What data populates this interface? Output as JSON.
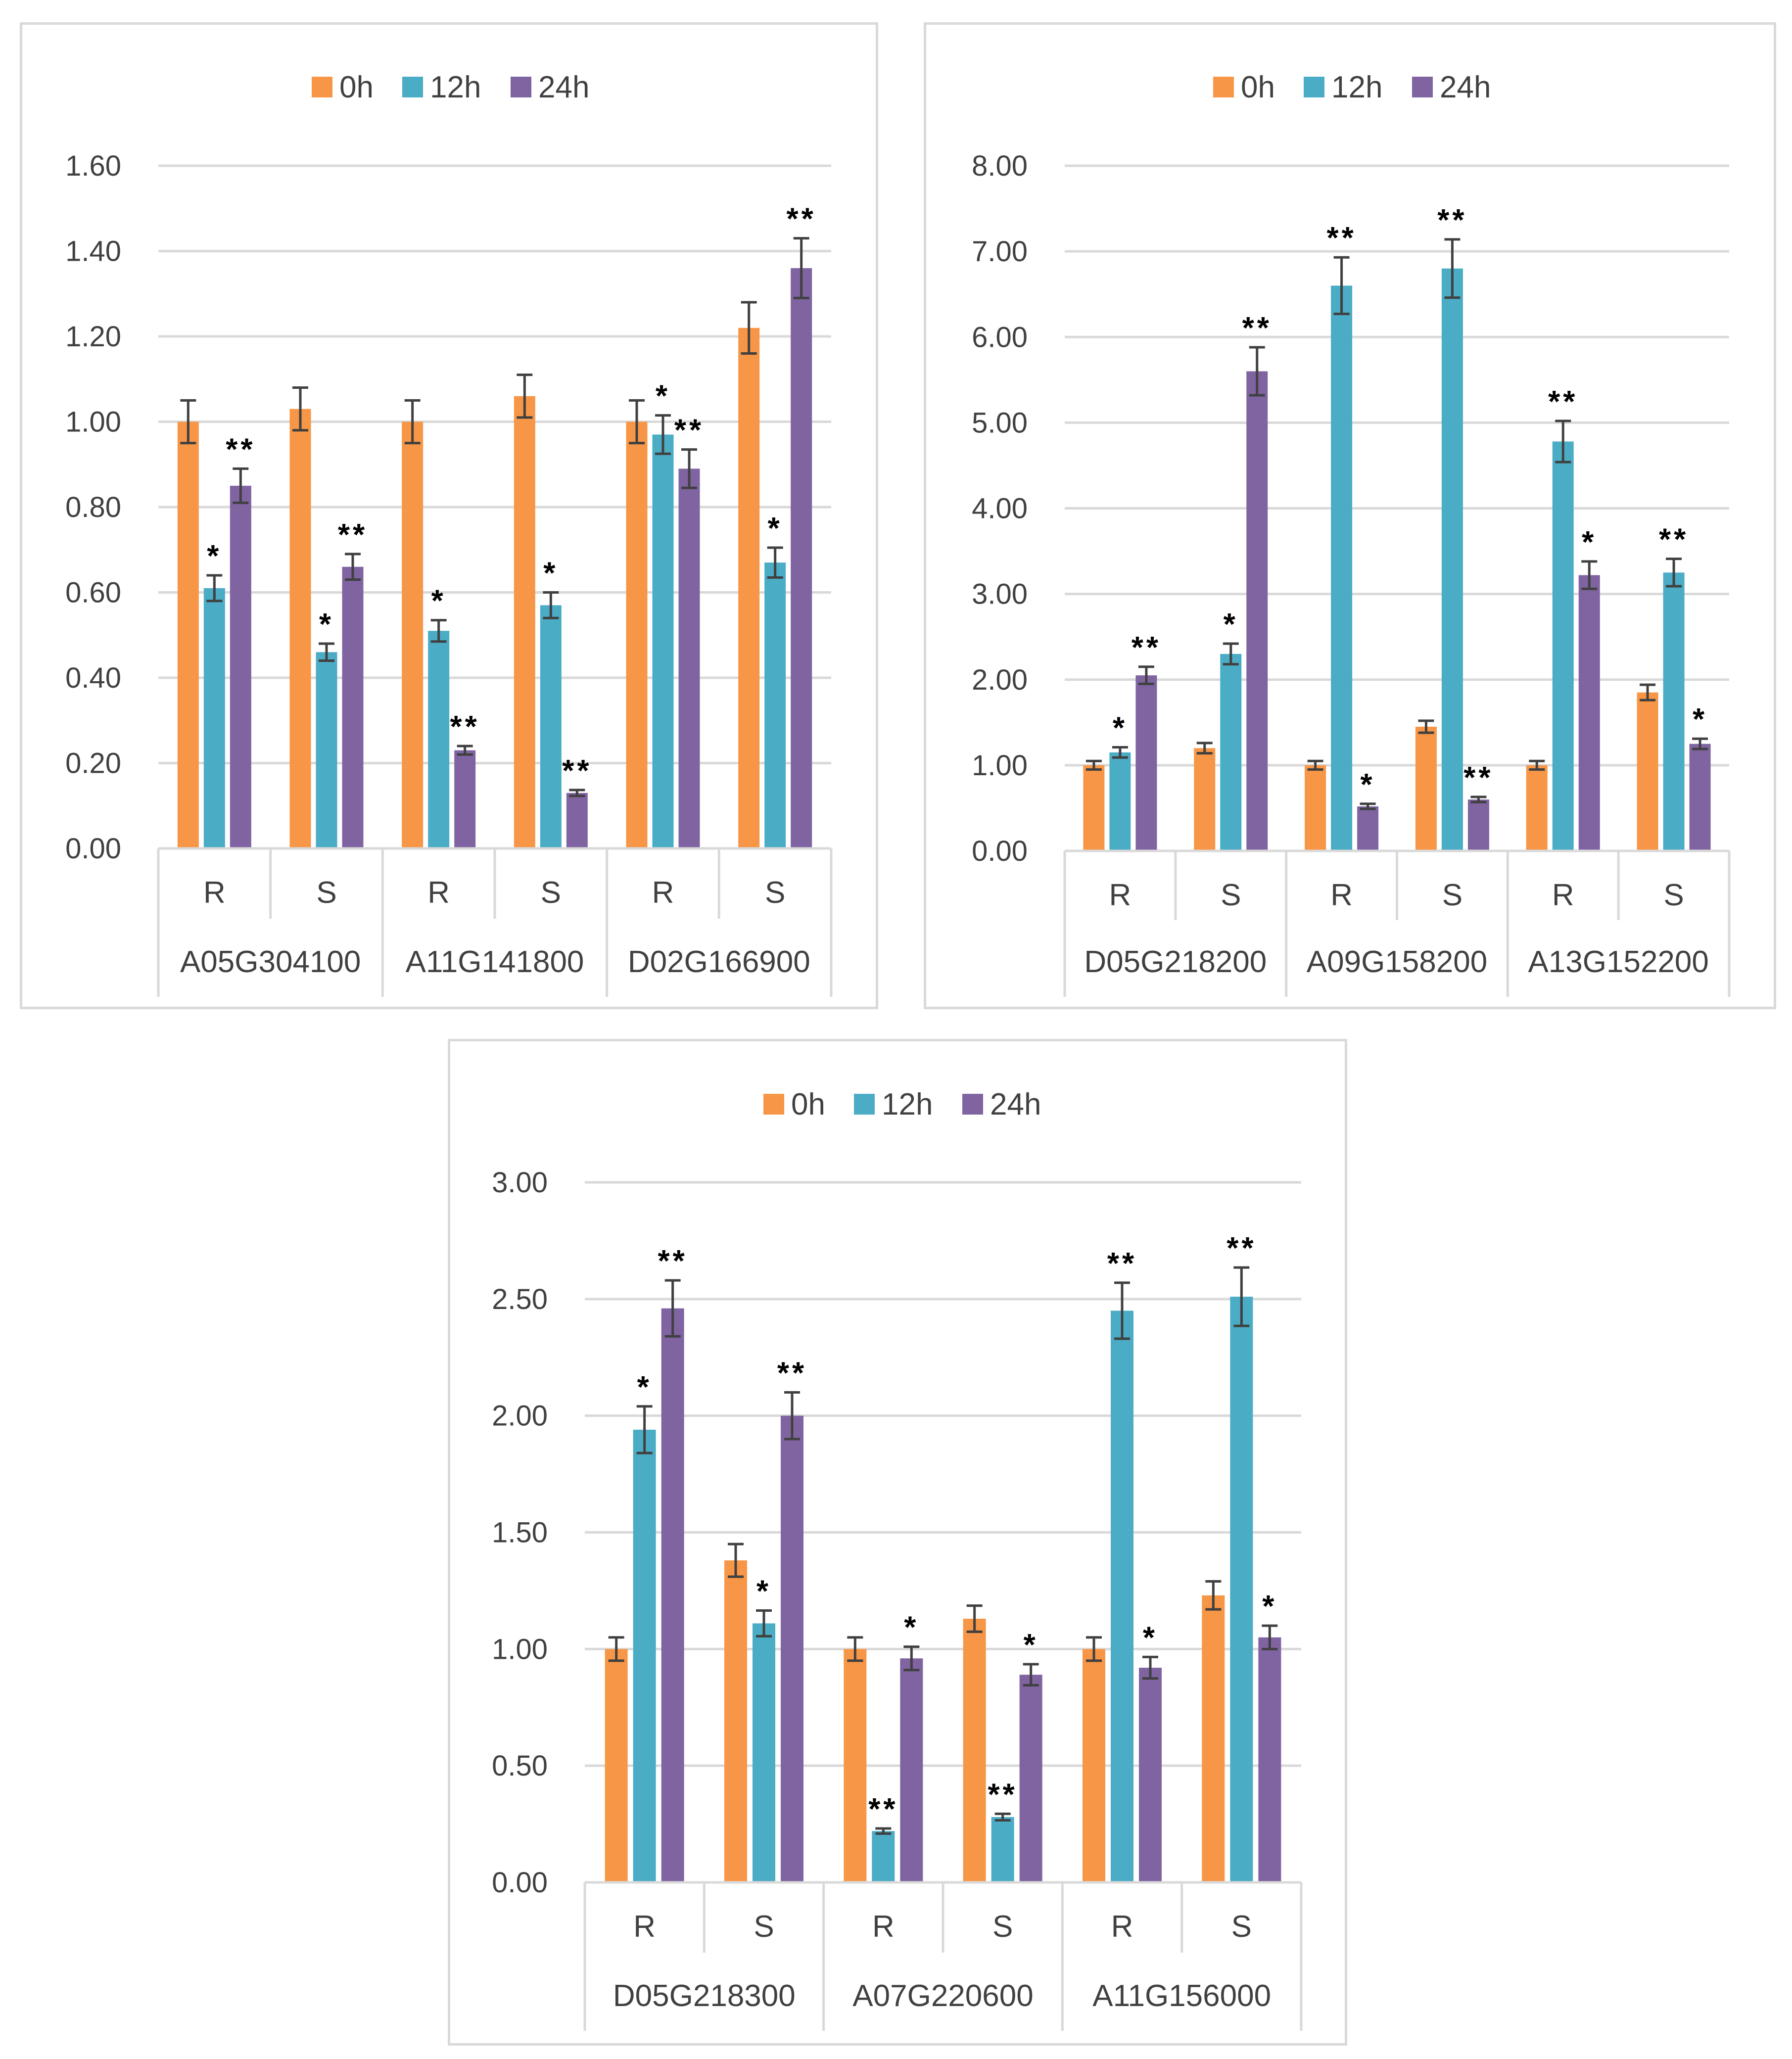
{
  "colors": {
    "0h": "#f79646",
    "12h": "#4bacc6",
    "24h": "#8064a2",
    "grid": "#d9d9d9",
    "error": "#404040",
    "text": "#404040",
    "star": "#000000"
  },
  "chart_data": [
    {
      "type": "bar",
      "title": "",
      "legend_position": "top-center",
      "series_names": [
        "0h",
        "12h",
        "24h"
      ],
      "y_ticks": [
        "0.00",
        "0.20",
        "0.40",
        "0.60",
        "0.80",
        "1.00",
        "1.20",
        "1.40",
        "1.60"
      ],
      "ylim": [
        0,
        1.6
      ],
      "genes": [
        "A05G304100",
        "A11G141800",
        "D02G166900"
      ],
      "groups": [
        {
          "label": "R",
          "gene": "A05G304100",
          "values": [
            1.0,
            0.61,
            0.85
          ],
          "errors": [
            0.05,
            0.03,
            0.04
          ],
          "sig": [
            "",
            "*",
            "**"
          ]
        },
        {
          "label": "S",
          "gene": "A05G304100",
          "values": [
            1.03,
            0.46,
            0.66
          ],
          "errors": [
            0.05,
            0.02,
            0.03
          ],
          "sig": [
            "",
            "*",
            "**"
          ]
        },
        {
          "label": "R",
          "gene": "A11G141800",
          "values": [
            1.0,
            0.51,
            0.23
          ],
          "errors": [
            0.05,
            0.025,
            0.01
          ],
          "sig": [
            "",
            "*",
            "**"
          ]
        },
        {
          "label": "S",
          "gene": "A11G141800",
          "values": [
            1.06,
            0.57,
            0.13
          ],
          "errors": [
            0.05,
            0.03,
            0.007
          ],
          "sig": [
            "",
            "*",
            "**"
          ]
        },
        {
          "label": "R",
          "gene": "D02G166900",
          "values": [
            1.0,
            0.97,
            0.89
          ],
          "errors": [
            0.05,
            0.045,
            0.045
          ],
          "sig": [
            "",
            "*",
            "**"
          ]
        },
        {
          "label": "S",
          "gene": "D02G166900",
          "values": [
            1.22,
            0.67,
            1.36
          ],
          "errors": [
            0.06,
            0.035,
            0.07
          ],
          "sig": [
            "",
            "*",
            "**"
          ]
        }
      ]
    },
    {
      "type": "bar",
      "title": "",
      "legend_position": "top-center",
      "series_names": [
        "0h",
        "12h",
        "24h"
      ],
      "y_ticks": [
        "0.00",
        "1.00",
        "2.00",
        "3.00",
        "4.00",
        "5.00",
        "6.00",
        "7.00",
        "8.00"
      ],
      "ylim": [
        0,
        8
      ],
      "genes": [
        "D05G218200",
        "A09G158200",
        "A13G152200"
      ],
      "groups": [
        {
          "label": "R",
          "gene": "D05G218200",
          "values": [
            1.0,
            1.15,
            2.05
          ],
          "errors": [
            0.05,
            0.06,
            0.1
          ],
          "sig": [
            "",
            "*",
            "**"
          ]
        },
        {
          "label": "S",
          "gene": "D05G218200",
          "values": [
            1.2,
            2.3,
            5.6
          ],
          "errors": [
            0.06,
            0.12,
            0.28
          ],
          "sig": [
            "",
            "*",
            "**"
          ]
        },
        {
          "label": "R",
          "gene": "A09G158200",
          "values": [
            1.0,
            6.6,
            0.52
          ],
          "errors": [
            0.05,
            0.33,
            0.03
          ],
          "sig": [
            "",
            "**",
            "*"
          ]
        },
        {
          "label": "S",
          "gene": "A09G158200",
          "values": [
            1.45,
            6.8,
            0.6
          ],
          "errors": [
            0.07,
            0.34,
            0.03
          ],
          "sig": [
            "",
            "**",
            "**"
          ]
        },
        {
          "label": "R",
          "gene": "A13G152200",
          "values": [
            1.0,
            4.78,
            3.22
          ],
          "errors": [
            0.05,
            0.24,
            0.16
          ],
          "sig": [
            "",
            "**",
            "*"
          ]
        },
        {
          "label": "S",
          "gene": "A13G152200",
          "values": [
            1.85,
            3.25,
            1.25
          ],
          "errors": [
            0.09,
            0.16,
            0.06
          ],
          "sig": [
            "",
            "**",
            "*"
          ]
        }
      ]
    },
    {
      "type": "bar",
      "title": "",
      "legend_position": "top-center",
      "series_names": [
        "0h",
        "12h",
        "24h"
      ],
      "y_ticks": [
        "0.00",
        "0.50",
        "1.00",
        "1.50",
        "2.00",
        "2.50",
        "3.00"
      ],
      "ylim": [
        0,
        3
      ],
      "genes": [
        "D05G218300",
        "A07G220600",
        "A11G156000"
      ],
      "groups": [
        {
          "label": "R",
          "gene": "D05G218300",
          "values": [
            1.0,
            1.94,
            2.46
          ],
          "errors": [
            0.05,
            0.1,
            0.12
          ],
          "sig": [
            "",
            "*",
            "**"
          ]
        },
        {
          "label": "S",
          "gene": "D05G218300",
          "values": [
            1.38,
            1.11,
            2.0
          ],
          "errors": [
            0.07,
            0.055,
            0.1
          ],
          "sig": [
            "",
            "*",
            "**"
          ]
        },
        {
          "label": "R",
          "gene": "A07G220600",
          "values": [
            1.0,
            0.22,
            0.96
          ],
          "errors": [
            0.05,
            0.011,
            0.05
          ],
          "sig": [
            "",
            "**",
            "*"
          ]
        },
        {
          "label": "S",
          "gene": "A07G220600",
          "values": [
            1.13,
            0.28,
            0.89
          ],
          "errors": [
            0.056,
            0.014,
            0.045
          ],
          "sig": [
            "",
            "**",
            "*"
          ]
        },
        {
          "label": "R",
          "gene": "A11G156000",
          "values": [
            1.0,
            2.45,
            0.92
          ],
          "errors": [
            0.05,
            0.12,
            0.046
          ],
          "sig": [
            "",
            "**",
            "*"
          ]
        },
        {
          "label": "S",
          "gene": "A11G156000",
          "values": [
            1.23,
            2.51,
            1.05
          ],
          "errors": [
            0.06,
            0.125,
            0.05
          ],
          "sig": [
            "",
            "**",
            "*"
          ]
        }
      ]
    }
  ]
}
